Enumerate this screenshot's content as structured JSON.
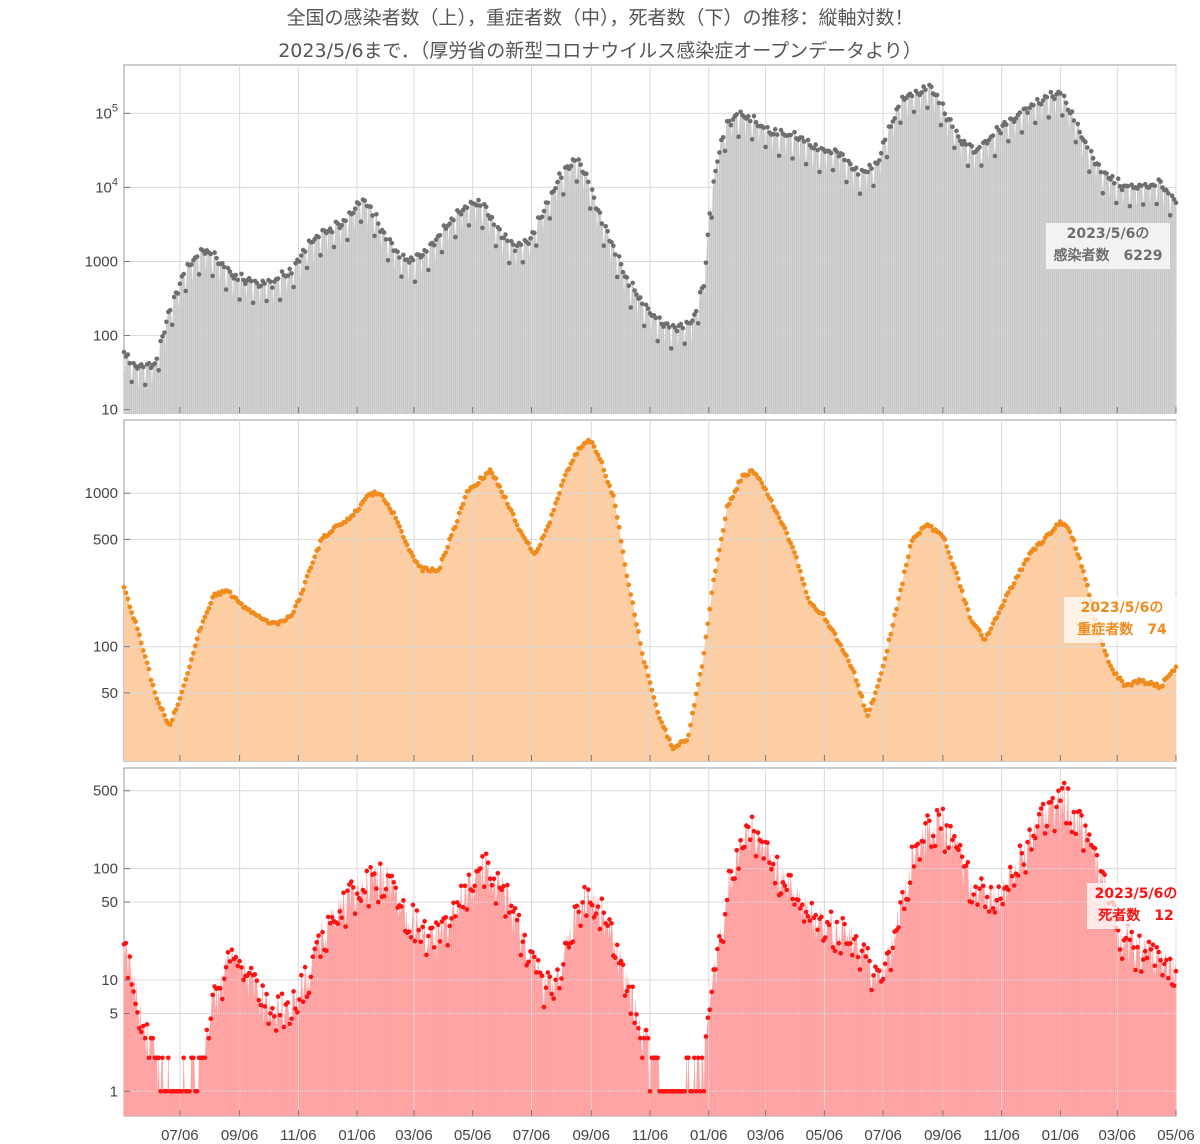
{
  "title": {
    "line1": "全国の感染者数（上），重症者数（中），死者数（下）の推移：縦軸対数！",
    "line2": "2023/5/6まで．（厚労省の新型コロナウイルス感染症オープンデータより）"
  },
  "chart_data": {
    "type": "area",
    "x_tick_labels": [
      "07/06",
      "09/06",
      "11/06",
      "01/06",
      "03/06",
      "05/06",
      "07/06",
      "09/06",
      "11/06",
      "01/06",
      "03/06",
      "05/06",
      "07/06",
      "09/06",
      "11/06",
      "01/06",
      "03/06",
      "05/06"
    ],
    "x_range": [
      "2020-05-09",
      "2023-05-06"
    ],
    "panels": [
      {
        "name": "感染者数",
        "scale": "log",
        "ylim": [
          9,
          450000
        ],
        "y_tick_labels": [
          "10",
          "100",
          "1000",
          "10^4",
          "10^5"
        ],
        "color": "#6e6e6e",
        "fill": "#d4d4d4",
        "annotation": [
          "2023/5/6の",
          "感染者数　6229"
        ],
        "last_value": 6229,
        "keypoints": [
          [
            "2020-05-09",
            60
          ],
          [
            "2020-05-20",
            35
          ],
          [
            "2020-06-10",
            40
          ],
          [
            "2020-06-25",
            200
          ],
          [
            "2020-07-10",
            650
          ],
          [
            "2020-07-25",
            1200
          ],
          [
            "2020-08-01",
            1400
          ],
          [
            "2020-08-15",
            1000
          ],
          [
            "2020-08-31",
            600
          ],
          [
            "2020-09-20",
            500
          ],
          [
            "2020-10-10",
            500
          ],
          [
            "2020-10-31",
            750
          ],
          [
            "2020-11-15",
            1500
          ],
          [
            "2020-11-28",
            2300
          ],
          [
            "2020-12-15",
            2800
          ],
          [
            "2020-12-31",
            4000
          ],
          [
            "2021-01-09",
            6800
          ],
          [
            "2021-01-20",
            5000
          ],
          [
            "2021-02-05",
            2000
          ],
          [
            "2021-02-20",
            1100
          ],
          [
            "2021-03-05",
            1000
          ],
          [
            "2021-03-20",
            1300
          ],
          [
            "2021-04-05",
            2500
          ],
          [
            "2021-04-20",
            4500
          ],
          [
            "2021-05-08",
            6200
          ],
          [
            "2021-05-20",
            5000
          ],
          [
            "2021-06-05",
            2200
          ],
          [
            "2021-06-20",
            1500
          ],
          [
            "2021-07-05",
            2000
          ],
          [
            "2021-07-20",
            5000
          ],
          [
            "2021-08-05",
            14000
          ],
          [
            "2021-08-20",
            23000
          ],
          [
            "2021-08-31",
            15000
          ],
          [
            "2021-09-15",
            4000
          ],
          [
            "2021-10-01",
            1300
          ],
          [
            "2021-10-15",
            500
          ],
          [
            "2021-10-31",
            250
          ],
          [
            "2021-11-15",
            150
          ],
          [
            "2021-12-01",
            120
          ],
          [
            "2021-12-20",
            150
          ],
          [
            "2022-01-01",
            500
          ],
          [
            "2022-01-08",
            6000
          ],
          [
            "2022-01-15",
            25000
          ],
          [
            "2022-01-25",
            70000
          ],
          [
            "2022-02-05",
            95000
          ],
          [
            "2022-02-20",
            80000
          ],
          [
            "2022-03-10",
            55000
          ],
          [
            "2022-04-10",
            45000
          ],
          [
            "2022-05-01",
            30000
          ],
          [
            "2022-05-20",
            30000
          ],
          [
            "2022-06-10",
            15000
          ],
          [
            "2022-06-30",
            20000
          ],
          [
            "2022-07-10",
            50000
          ],
          [
            "2022-07-25",
            150000
          ],
          [
            "2022-08-15",
            200000
          ],
          [
            "2022-08-25",
            220000
          ],
          [
            "2022-09-10",
            90000
          ],
          [
            "2022-09-25",
            40000
          ],
          [
            "2022-10-10",
            30000
          ],
          [
            "2022-10-25",
            45000
          ],
          [
            "2022-11-10",
            70000
          ],
          [
            "2022-12-01",
            110000
          ],
          [
            "2022-12-20",
            150000
          ],
          [
            "2023-01-06",
            180000
          ],
          [
            "2023-01-20",
            80000
          ],
          [
            "2023-02-05",
            30000
          ],
          [
            "2023-02-20",
            15000
          ],
          [
            "2023-03-10",
            10000
          ],
          [
            "2023-03-31",
            10000
          ],
          [
            "2023-04-20",
            11000
          ],
          [
            "2023-05-06",
            6229
          ]
        ]
      },
      {
        "name": "重症者数",
        "scale": "log",
        "ylim": [
          18,
          3000
        ],
        "y_tick_labels": [
          "50",
          "100",
          "500",
          "1000"
        ],
        "color": "#f08c1e",
        "fill": "#fdcea3",
        "annotation": [
          "2023/5/6の",
          "重症者数　74"
        ],
        "last_value": 74,
        "keypoints": [
          [
            "2020-05-09",
            240
          ],
          [
            "2020-05-25",
            120
          ],
          [
            "2020-06-10",
            50
          ],
          [
            "2020-06-25",
            30
          ],
          [
            "2020-07-10",
            55
          ],
          [
            "2020-07-25",
            120
          ],
          [
            "2020-08-10",
            220
          ],
          [
            "2020-08-25",
            230
          ],
          [
            "2020-09-10",
            180
          ],
          [
            "2020-09-30",
            150
          ],
          [
            "2020-10-15",
            140
          ],
          [
            "2020-10-31",
            160
          ],
          [
            "2020-11-15",
            280
          ],
          [
            "2020-11-30",
            500
          ],
          [
            "2020-12-15",
            600
          ],
          [
            "2020-12-31",
            700
          ],
          [
            "2021-01-20",
            1000
          ],
          [
            "2021-01-31",
            980
          ],
          [
            "2021-02-15",
            700
          ],
          [
            "2021-03-01",
            420
          ],
          [
            "2021-03-15",
            320
          ],
          [
            "2021-03-31",
            310
          ],
          [
            "2021-04-15",
            550
          ],
          [
            "2021-04-30",
            1000
          ],
          [
            "2021-05-15",
            1250
          ],
          [
            "2021-05-25",
            1400
          ],
          [
            "2021-06-10",
            900
          ],
          [
            "2021-06-25",
            550
          ],
          [
            "2021-07-10",
            400
          ],
          [
            "2021-07-25",
            650
          ],
          [
            "2021-08-10",
            1300
          ],
          [
            "2021-08-25",
            2000
          ],
          [
            "2021-09-05",
            2200
          ],
          [
            "2021-09-15",
            1700
          ],
          [
            "2021-09-30",
            900
          ],
          [
            "2021-10-15",
            250
          ],
          [
            "2021-10-31",
            80
          ],
          [
            "2021-11-15",
            35
          ],
          [
            "2021-11-30",
            22
          ],
          [
            "2021-12-15",
            25
          ],
          [
            "2021-12-31",
            80
          ],
          [
            "2022-01-10",
            250
          ],
          [
            "2022-01-25",
            800
          ],
          [
            "2022-02-10",
            1300
          ],
          [
            "2022-02-20",
            1400
          ],
          [
            "2022-03-05",
            1100
          ],
          [
            "2022-03-20",
            700
          ],
          [
            "2022-04-05",
            420
          ],
          [
            "2022-04-20",
            200
          ],
          [
            "2022-05-05",
            160
          ],
          [
            "2022-05-20",
            110
          ],
          [
            "2022-06-05",
            70
          ],
          [
            "2022-06-20",
            35
          ],
          [
            "2022-07-05",
            70
          ],
          [
            "2022-07-20",
            180
          ],
          [
            "2022-08-05",
            500
          ],
          [
            "2022-08-20",
            620
          ],
          [
            "2022-09-05",
            550
          ],
          [
            "2022-09-20",
            300
          ],
          [
            "2022-10-05",
            150
          ],
          [
            "2022-10-20",
            110
          ],
          [
            "2022-11-05",
            180
          ],
          [
            "2022-11-20",
            270
          ],
          [
            "2022-12-05",
            400
          ],
          [
            "2022-12-20",
            500
          ],
          [
            "2023-01-05",
            650
          ],
          [
            "2023-01-15",
            600
          ],
          [
            "2023-01-31",
            300
          ],
          [
            "2023-02-15",
            120
          ],
          [
            "2023-03-01",
            70
          ],
          [
            "2023-03-15",
            55
          ],
          [
            "2023-03-31",
            60
          ],
          [
            "2023-04-20",
            55
          ],
          [
            "2023-05-06",
            74
          ]
        ]
      },
      {
        "name": "死者数",
        "scale": "log",
        "ylim": [
          0.6,
          800
        ],
        "y_tick_labels": [
          "1",
          "5",
          "10",
          "50",
          "100",
          "500"
        ],
        "color": "#ff1111",
        "fill": "#ffa8a8",
        "annotation": [
          "2023/5/6の",
          "死者数　12"
        ],
        "last_value": 12,
        "keypoints": [
          [
            "2020-05-09",
            18
          ],
          [
            "2020-05-20",
            10
          ],
          [
            "2020-06-01",
            3
          ],
          [
            "2020-06-15",
            1.5
          ],
          [
            "2020-07-05",
            1
          ],
          [
            "2020-07-25",
            1.5
          ],
          [
            "2020-08-10",
            6
          ],
          [
            "2020-08-25",
            14
          ],
          [
            "2020-09-10",
            12
          ],
          [
            "2020-09-25",
            8
          ],
          [
            "2020-10-10",
            5
          ],
          [
            "2020-10-31",
            6
          ],
          [
            "2020-11-15",
            10
          ],
          [
            "2020-11-30",
            25
          ],
          [
            "2020-12-15",
            40
          ],
          [
            "2020-12-31",
            55
          ],
          [
            "2021-01-20",
            75
          ],
          [
            "2021-02-05",
            90
          ],
          [
            "2021-02-20",
            50
          ],
          [
            "2021-03-05",
            35
          ],
          [
            "2021-03-20",
            25
          ],
          [
            "2021-04-05",
            25
          ],
          [
            "2021-04-20",
            45
          ],
          [
            "2021-05-05",
            75
          ],
          [
            "2021-05-20",
            100
          ],
          [
            "2021-06-05",
            70
          ],
          [
            "2021-06-20",
            35
          ],
          [
            "2021-07-05",
            15
          ],
          [
            "2021-07-20",
            9
          ],
          [
            "2021-08-05",
            12
          ],
          [
            "2021-08-20",
            35
          ],
          [
            "2021-09-01",
            60
          ],
          [
            "2021-09-15",
            45
          ],
          [
            "2021-09-30",
            20
          ],
          [
            "2021-10-15",
            8
          ],
          [
            "2021-10-31",
            3
          ],
          [
            "2021-11-15",
            1.5
          ],
          [
            "2021-12-05",
            1
          ],
          [
            "2021-12-31",
            1.5
          ],
          [
            "2022-01-10",
            8
          ],
          [
            "2022-01-25",
            60
          ],
          [
            "2022-02-10",
            170
          ],
          [
            "2022-02-20",
            220
          ],
          [
            "2022-03-05",
            150
          ],
          [
            "2022-03-20",
            90
          ],
          [
            "2022-04-05",
            55
          ],
          [
            "2022-04-20",
            40
          ],
          [
            "2022-05-10",
            30
          ],
          [
            "2022-05-31",
            25
          ],
          [
            "2022-06-20",
            15
          ],
          [
            "2022-07-05",
            10
          ],
          [
            "2022-07-20",
            30
          ],
          [
            "2022-08-05",
            120
          ],
          [
            "2022-08-25",
            250
          ],
          [
            "2022-09-05",
            260
          ],
          [
            "2022-09-20",
            150
          ],
          [
            "2022-10-05",
            70
          ],
          [
            "2022-10-20",
            55
          ],
          [
            "2022-11-05",
            60
          ],
          [
            "2022-11-20",
            100
          ],
          [
            "2022-12-05",
            180
          ],
          [
            "2022-12-20",
            280
          ],
          [
            "2023-01-10",
            420
          ],
          [
            "2023-01-25",
            280
          ],
          [
            "2023-02-10",
            120
          ],
          [
            "2023-02-25",
            50
          ],
          [
            "2023-03-10",
            25
          ],
          [
            "2023-03-25",
            20
          ],
          [
            "2023-04-15",
            15
          ],
          [
            "2023-05-06",
            12
          ]
        ]
      }
    ]
  }
}
